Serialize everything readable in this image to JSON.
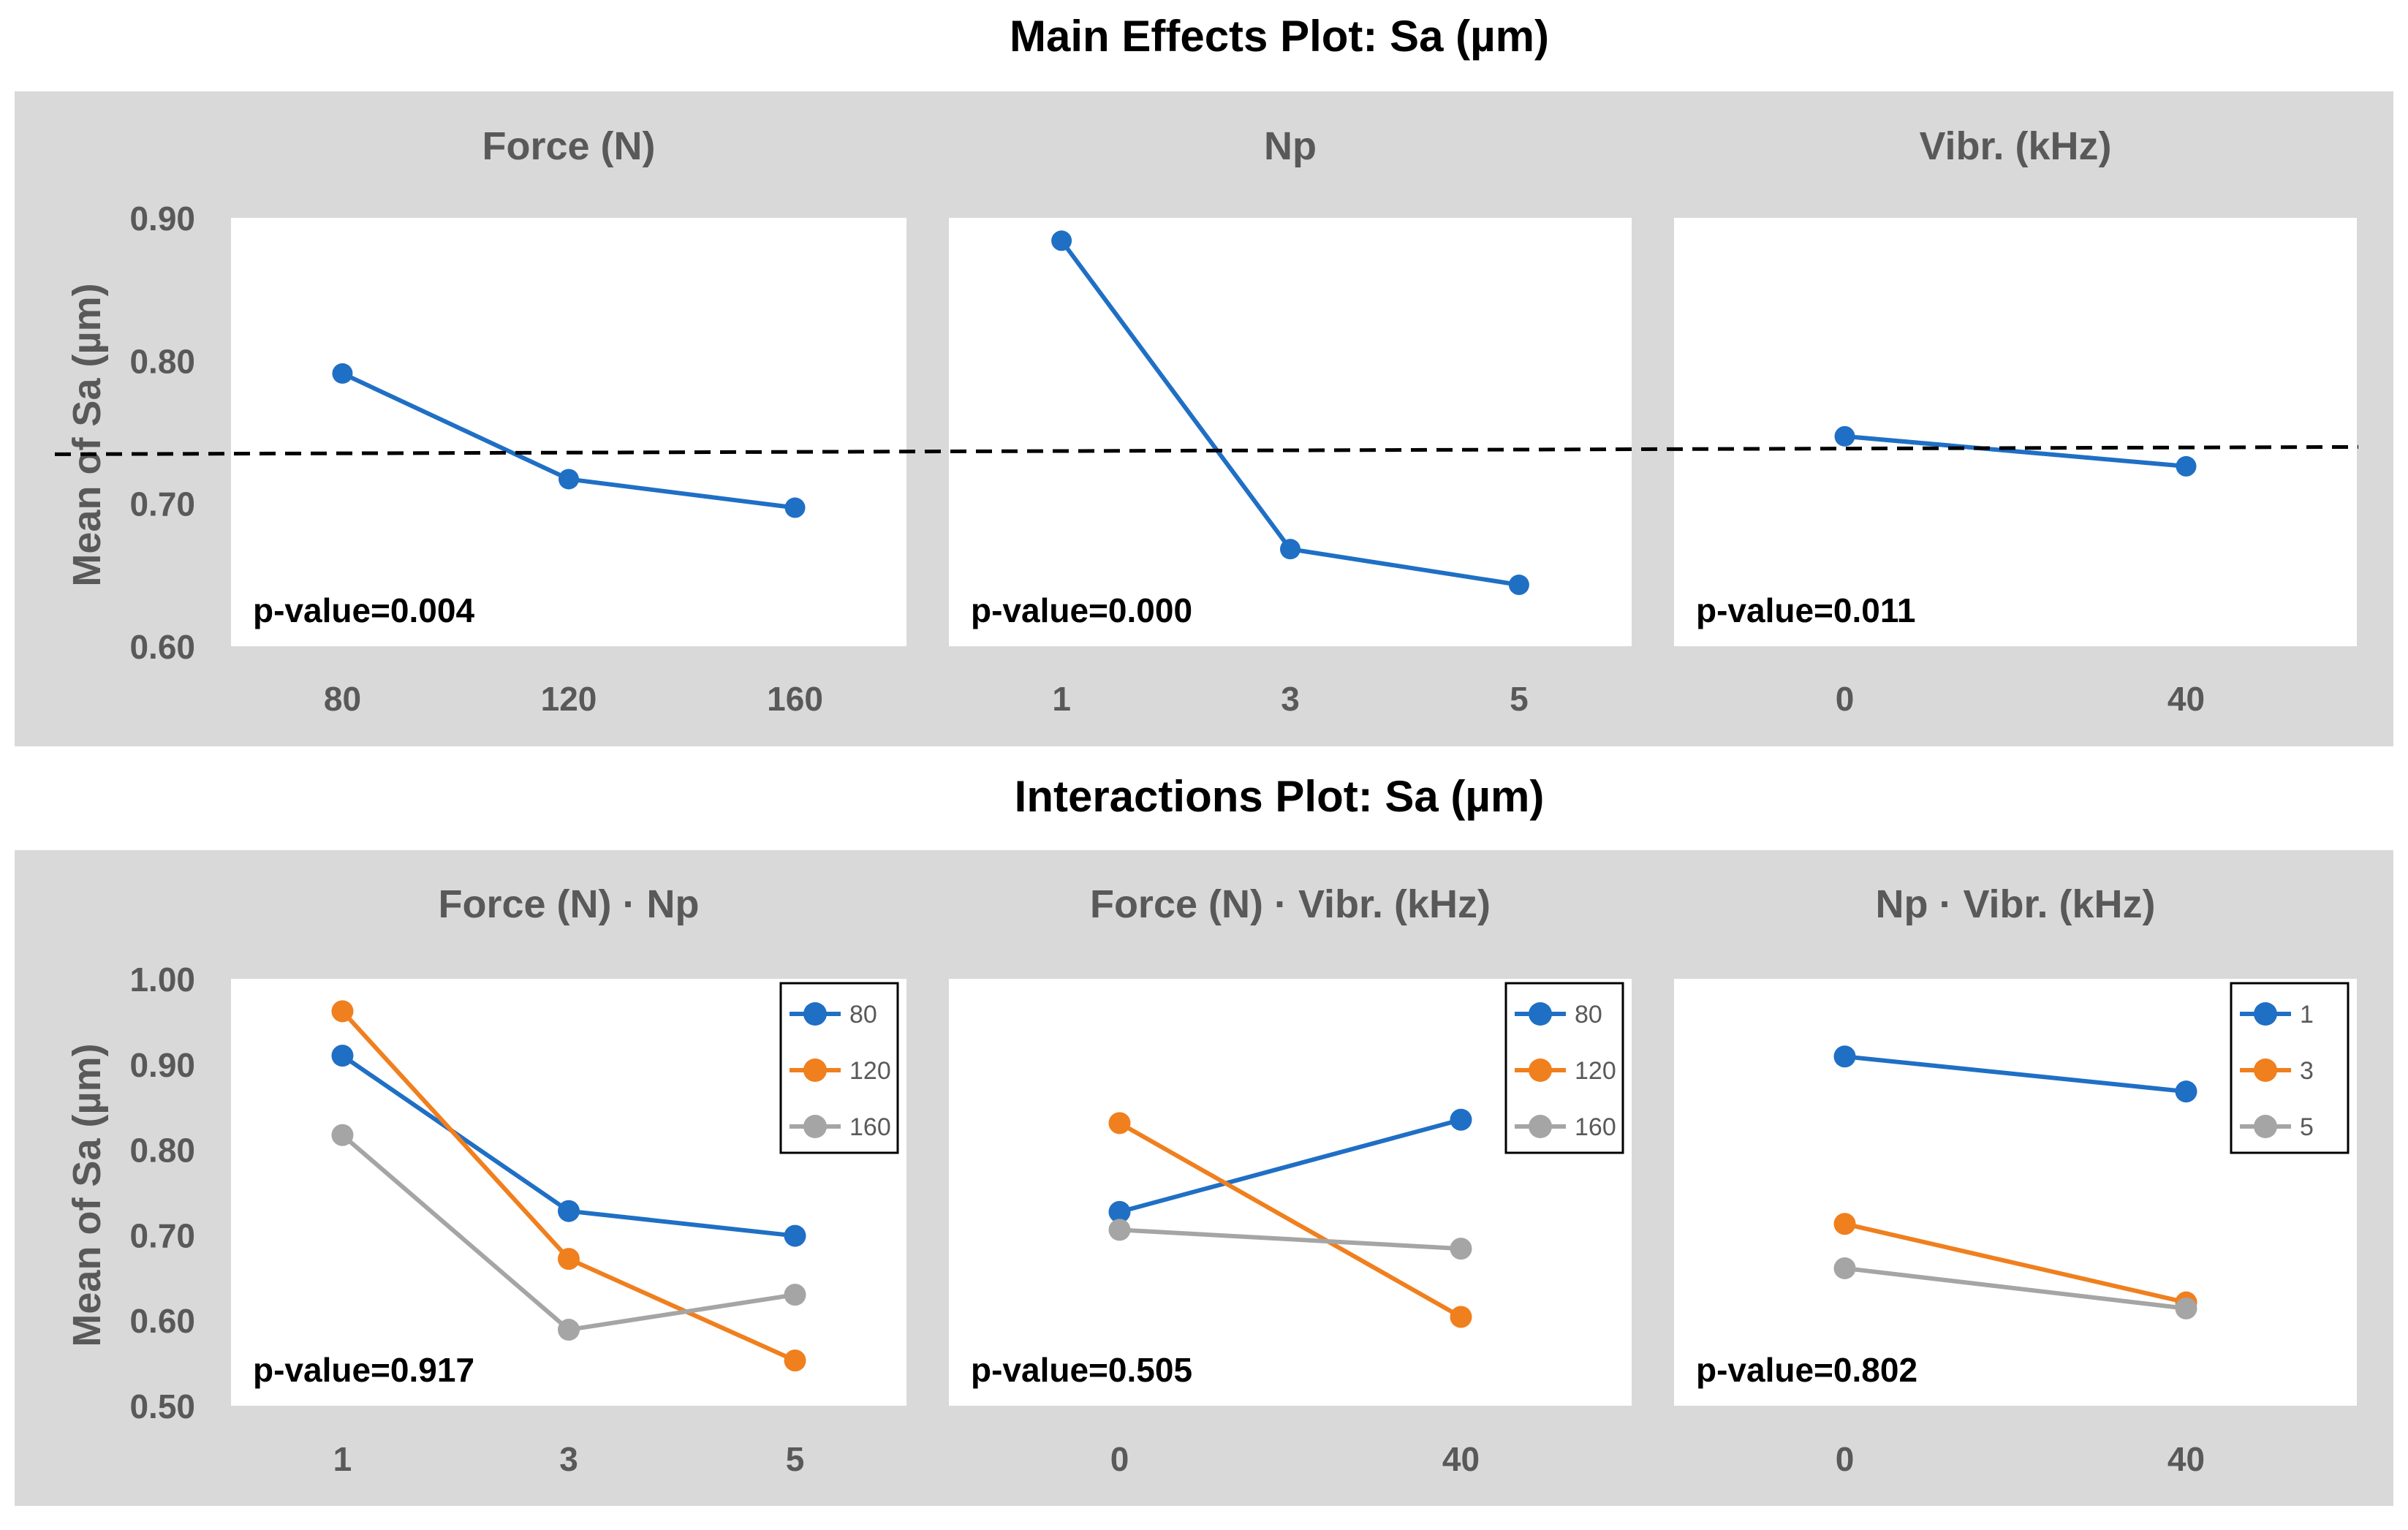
{
  "colors": {
    "band": "#d9d9d9",
    "plot_bg": "#ffffff",
    "text_dark": "#595959",
    "series_blue": "#1f6fc5",
    "series_orange": "#f07f1e",
    "series_gray": "#a5a5a5",
    "mean_line": "#000000"
  },
  "main_title": "Main Effects Plot: Sa (µm)",
  "interactions_title": "Interactions Plot: Sa (µm)",
  "main_ylabel": "Mean of Sa (µm)",
  "interactions_ylabel": "Mean of Sa (µm)",
  "chart_data": [
    {
      "type": "line",
      "section": "main",
      "title": "Force (N)",
      "categories": [
        "80",
        "120",
        "160"
      ],
      "series": [
        {
          "name": "Force (N)",
          "values": [
            0.791,
            0.717,
            0.697
          ]
        }
      ],
      "ylim": [
        0.6,
        0.9
      ],
      "yticks": [
        "0.60",
        "0.70",
        "0.80",
        "0.90"
      ],
      "mean_line": 0.737,
      "annotation": "p-value=0.004"
    },
    {
      "type": "line",
      "section": "main",
      "title": "Np",
      "categories": [
        "1",
        "3",
        "5"
      ],
      "series": [
        {
          "name": "Np",
          "values": [
            0.884,
            0.668,
            0.643
          ]
        }
      ],
      "ylim": [
        0.6,
        0.9
      ],
      "mean_line": 0.737,
      "annotation": "p-value=0.000"
    },
    {
      "type": "line",
      "section": "main",
      "title": "Vibr. (kHz)",
      "categories": [
        "0",
        "40"
      ],
      "series": [
        {
          "name": "Vibr. (kHz)",
          "values": [
            0.747,
            0.726
          ]
        }
      ],
      "ylim": [
        0.6,
        0.9
      ],
      "mean_line": 0.737,
      "annotation": "p-value=0.011"
    },
    {
      "type": "line",
      "section": "interactions",
      "title": "Force (N) · Np",
      "categories": [
        "1",
        "3",
        "5"
      ],
      "series": [
        {
          "name": "80",
          "values": [
            0.91,
            0.728,
            0.699
          ]
        },
        {
          "name": "120",
          "values": [
            0.962,
            0.672,
            0.553
          ]
        },
        {
          "name": "160",
          "values": [
            0.817,
            0.589,
            0.63
          ]
        }
      ],
      "ylim": [
        0.5,
        1.0
      ],
      "yticks": [
        "0.50",
        "0.60",
        "0.70",
        "0.80",
        "0.90",
        "1.00"
      ],
      "annotation": "p-value=0.917",
      "legend": "top-right"
    },
    {
      "type": "line",
      "section": "interactions",
      "title": "Force (N) · Vibr. (kHz)",
      "categories": [
        "0",
        "40"
      ],
      "series": [
        {
          "name": "80",
          "values": [
            0.727,
            0.835
          ]
        },
        {
          "name": "120",
          "values": [
            0.831,
            0.604
          ]
        },
        {
          "name": "160",
          "values": [
            0.706,
            0.684
          ]
        }
      ],
      "ylim": [
        0.5,
        1.0
      ],
      "annotation": "p-value=0.505",
      "legend": "top-right"
    },
    {
      "type": "line",
      "section": "interactions",
      "title": "Np · Vibr. (kHz)",
      "categories": [
        "0",
        "40"
      ],
      "series": [
        {
          "name": "1",
          "values": [
            0.909,
            0.868
          ]
        },
        {
          "name": "3",
          "values": [
            0.713,
            0.621
          ]
        },
        {
          "name": "5",
          "values": [
            0.661,
            0.614
          ]
        }
      ],
      "ylim": [
        0.5,
        1.0
      ],
      "annotation": "p-value=0.802",
      "legend": "top-right"
    }
  ]
}
